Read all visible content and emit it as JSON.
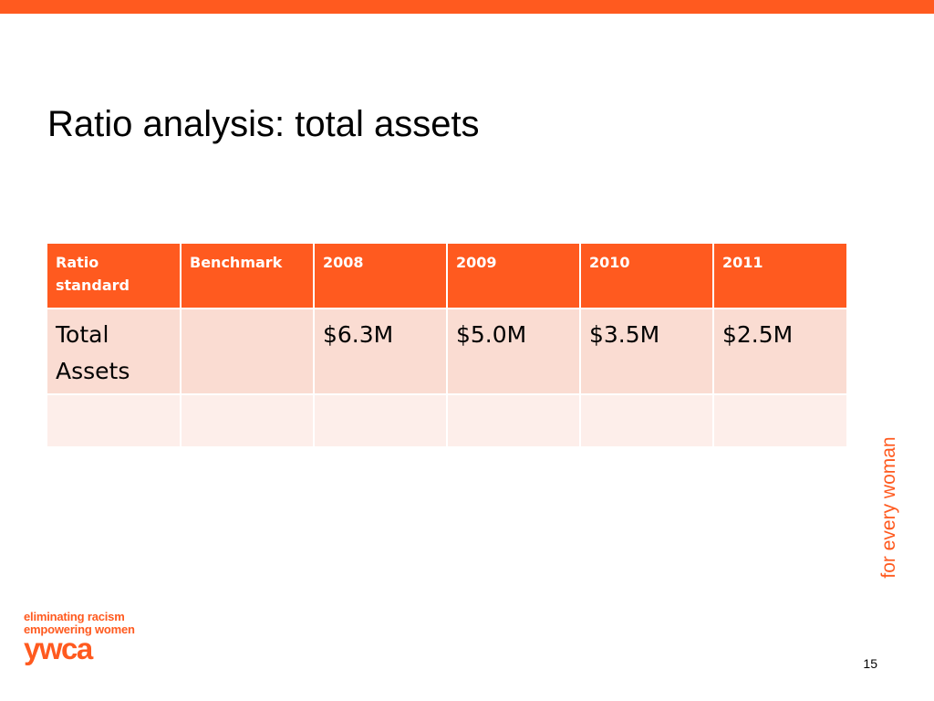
{
  "slide": {
    "title": "Ratio analysis: total assets",
    "page_number": "15",
    "tagline": "for every woman"
  },
  "table": {
    "headers": [
      "Ratio standard",
      "Benchmark",
      "2008",
      "2009",
      "2010",
      "2011"
    ],
    "rows": [
      [
        "Total Assets",
        "",
        "$6.3M",
        "$5.0M",
        "$3.5M",
        "$2.5M"
      ],
      [
        "",
        "",
        "",
        "",
        "",
        ""
      ]
    ]
  },
  "logo": {
    "line1": "eliminating racism",
    "line2": "empowering women",
    "mark": "ywca"
  },
  "colors": {
    "accent": "#ff5a1f",
    "row_fill": "#fadcd2",
    "row_fill_light": "#fdeeea"
  }
}
